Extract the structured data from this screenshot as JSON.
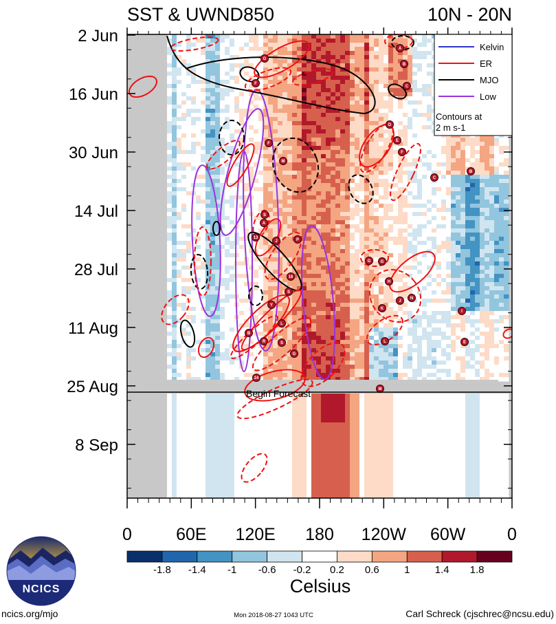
{
  "chart_data": {
    "type": "heatmap",
    "title_left": "SST & UWND850",
    "title_right": "10N - 20N",
    "y_axis": {
      "labels": [
        "2 Jun",
        "16 Jun",
        "30 Jun",
        "14 Jul",
        "28 Jul",
        "11 Aug",
        "25 Aug",
        "8 Sep"
      ],
      "start": "2 Jun",
      "end": "21 Sep",
      "label_interval_days": 14
    },
    "x_axis": {
      "labels": [
        "0",
        "60E",
        "120E",
        "180",
        "120W",
        "60W",
        "0"
      ],
      "range_deg": [
        0,
        360
      ]
    },
    "colorbar": {
      "label": "Celsius",
      "ticks": [
        "-1.8",
        "-1.4",
        "-1",
        "-0.6",
        "-0.2",
        "0.2",
        "0.6",
        "1",
        "1.4",
        "1.8"
      ],
      "colors": [
        "#08306b",
        "#2166ac",
        "#4393c3",
        "#92c5de",
        "#d1e5f0",
        "#ffffff",
        "#fddbc7",
        "#f4a582",
        "#d6604d",
        "#b2182b",
        "#67001f"
      ]
    },
    "forecast_marker": "Begin Forecast",
    "legend": [
      {
        "name": "Kelvin",
        "color": "#3333cc"
      },
      {
        "name": "ER",
        "color": "#ee1111"
      },
      {
        "name": "MJO",
        "color": "#000000"
      },
      {
        "name": "Low",
        "color": "#9933dd"
      }
    ],
    "legend_note": [
      "Contours at",
      "2 m s-1"
    ],
    "storm_labels": [
      "A",
      "B",
      "G",
      "D",
      "E",
      "F",
      "C",
      "S",
      "13",
      "J",
      "16",
      "P",
      "Y",
      "R",
      "L",
      "24",
      "M",
      "H",
      "K",
      "N",
      "I",
      "9"
    ]
  },
  "logo": {
    "text": "NCICS"
  },
  "footer": {
    "left": "ncics.org/mjo",
    "center": "Mon 2018-08-27 1043 UTC",
    "right": "Carl Schreck (cjschrec@ncsu.edu)"
  }
}
